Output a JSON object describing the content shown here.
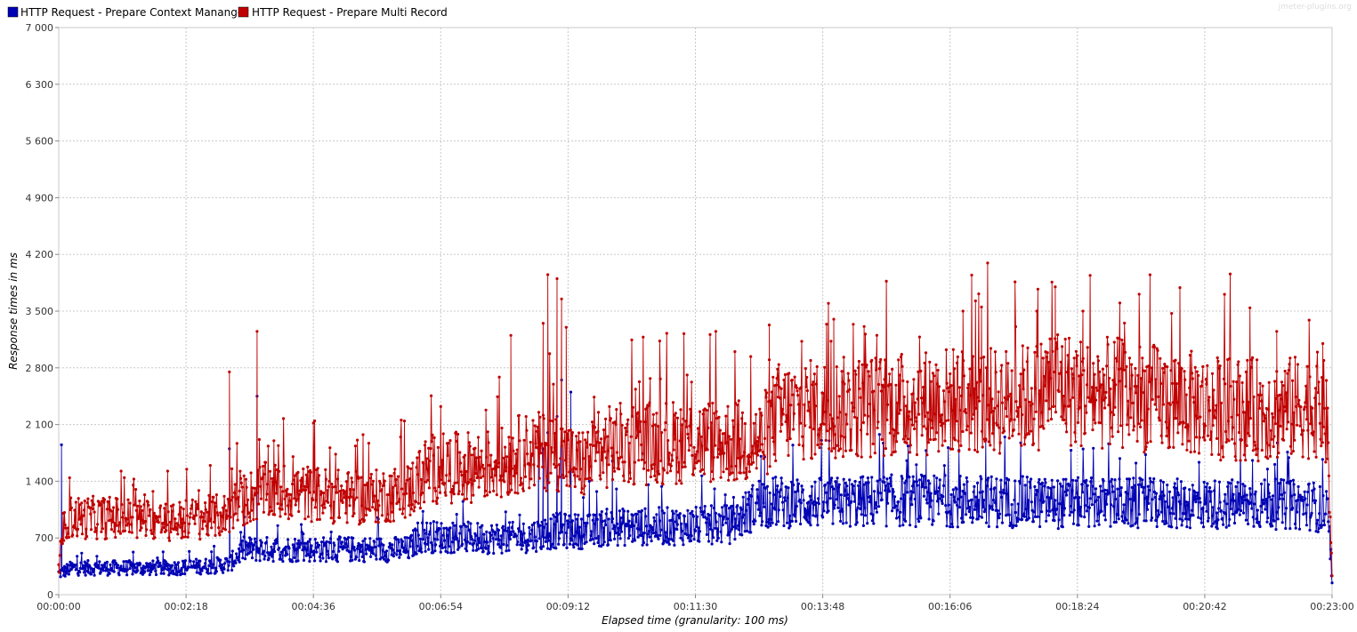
{
  "watermark": "jmeter-plugins.org",
  "chart_data": {
    "type": "line",
    "xlabel": "Elapsed time (granularity: 100 ms)",
    "ylabel": "Response times in ms",
    "x_ticks": [
      "00:00:00",
      "00:02:18",
      "00:04:36",
      "00:06:54",
      "00:09:12",
      "00:11:30",
      "00:13:48",
      "00:16:06",
      "00:18:24",
      "00:20:42",
      "00:23:00"
    ],
    "x_range_seconds": [
      0,
      1380
    ],
    "ylim": [
      0,
      7000
    ],
    "y_ticks": [
      0,
      700,
      1400,
      2100,
      2800,
      3500,
      4200,
      4900,
      5600,
      6300,
      7000
    ],
    "y_tick_labels": [
      "0",
      "700",
      "1 400",
      "2 100",
      "2 800",
      "3 500",
      "4 200",
      "4 900",
      "5 600",
      "6 300",
      "7 000"
    ],
    "grid": true,
    "legend_position": "top-left",
    "series": [
      {
        "name": "HTTP Request - Prepare Context Mananger",
        "color": "#0000b4",
        "baseline_points": [
          [
            0,
            260
          ],
          [
            15,
            330
          ],
          [
            60,
            330
          ],
          [
            120,
            330
          ],
          [
            170,
            360
          ],
          [
            185,
            380
          ],
          [
            200,
            560
          ],
          [
            240,
            560
          ],
          [
            300,
            560
          ],
          [
            380,
            560
          ],
          [
            390,
            720
          ],
          [
            450,
            700
          ],
          [
            500,
            700
          ],
          [
            540,
            790
          ],
          [
            580,
            780
          ],
          [
            590,
            830
          ],
          [
            690,
            850
          ],
          [
            730,
            870
          ],
          [
            760,
            1150
          ],
          [
            820,
            1130
          ],
          [
            900,
            1160
          ],
          [
            960,
            1160
          ],
          [
            1020,
            1150
          ],
          [
            1080,
            1130
          ],
          [
            1140,
            1130
          ],
          [
            1200,
            1120
          ],
          [
            1260,
            1120
          ],
          [
            1310,
            1120
          ],
          [
            1360,
            1100
          ],
          [
            1375,
            1000
          ],
          [
            1380,
            100
          ]
        ],
        "spikes": [
          [
            3,
            1850
          ],
          [
            185,
            1800
          ],
          [
            215,
            2450
          ],
          [
            530,
            2000
          ],
          [
            520,
            1800
          ],
          [
            525,
            1800
          ],
          [
            540,
            2200
          ],
          [
            545,
            2650
          ],
          [
            555,
            2500
          ],
          [
            575,
            1400
          ],
          [
            600,
            1650
          ],
          [
            765,
            1700
          ],
          [
            940,
            1780
          ],
          [
            1150,
            1680
          ],
          [
            1310,
            1550
          ]
        ]
      },
      {
        "name": "HTTP Request - Prepare Multi Record",
        "color": "#c00000",
        "baseline_points": [
          [
            0,
            300
          ],
          [
            8,
            950
          ],
          [
            60,
            950
          ],
          [
            120,
            900
          ],
          [
            180,
            980
          ],
          [
            190,
            1100
          ],
          [
            220,
            1280
          ],
          [
            270,
            1250
          ],
          [
            330,
            1180
          ],
          [
            380,
            1280
          ],
          [
            400,
            1550
          ],
          [
            450,
            1580
          ],
          [
            480,
            1620
          ],
          [
            500,
            1750
          ],
          [
            540,
            1780
          ],
          [
            560,
            1600
          ],
          [
            570,
            1620
          ],
          [
            600,
            1850
          ],
          [
            690,
            1900
          ],
          [
            760,
            1880
          ],
          [
            780,
            2250
          ],
          [
            850,
            2300
          ],
          [
            920,
            2350
          ],
          [
            960,
            2400
          ],
          [
            1020,
            2380
          ],
          [
            1060,
            2450
          ],
          [
            1080,
            2650
          ],
          [
            1100,
            2500
          ],
          [
            1150,
            2480
          ],
          [
            1200,
            2400
          ],
          [
            1260,
            2300
          ],
          [
            1320,
            2280
          ],
          [
            1370,
            2350
          ],
          [
            1375,
            2000
          ],
          [
            1380,
            200
          ]
        ],
        "spikes": [
          [
            185,
            2750
          ],
          [
            215,
            3250
          ],
          [
            490,
            3200
          ],
          [
            525,
            3350
          ],
          [
            530,
            3950
          ],
          [
            540,
            3900
          ],
          [
            545,
            3650
          ],
          [
            550,
            3300
          ],
          [
            585,
            2250
          ],
          [
            770,
            2900
          ],
          [
            840,
            3400
          ],
          [
            980,
            3500
          ],
          [
            1000,
            3550
          ],
          [
            1060,
            3500
          ],
          [
            1080,
            3800
          ],
          [
            1110,
            3500
          ],
          [
            1150,
            3600
          ],
          [
            1320,
            3250
          ],
          [
            1370,
            3100
          ]
        ]
      }
    ]
  }
}
